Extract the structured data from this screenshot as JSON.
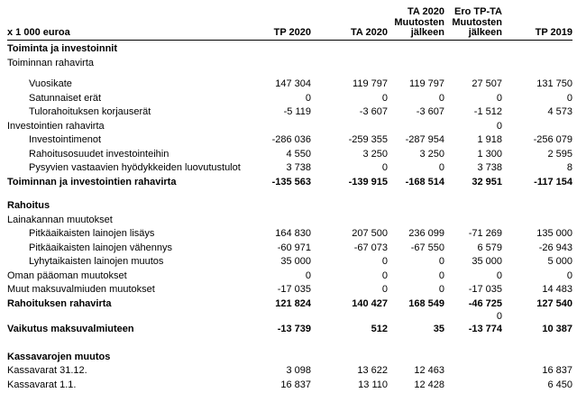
{
  "report": {
    "unit_label": "x 1 000 euroa",
    "columns": [
      {
        "id": "tp-2020",
        "text": "TP 2020"
      },
      {
        "id": "ta-2020",
        "text": "TA 2020"
      },
      {
        "id": "ta-2020-after-changes",
        "text": "TA 2020\nMuutosten\njälkeen"
      },
      {
        "id": "ero-tp-ta-after-changes",
        "text": "Ero TP-TA\nMuutosten\njälkeen"
      },
      {
        "id": "tp-2019",
        "text": "TP 2019"
      }
    ],
    "rows": [
      {
        "label": "Toiminta ja investoinnit",
        "type": "section",
        "values": [
          "",
          "",
          "",
          "",
          ""
        ]
      },
      {
        "label": "Toiminnan rahavirta",
        "type": "plain",
        "values": [
          "",
          "",
          "",
          "",
          ""
        ]
      },
      {
        "type": "spacer-sm"
      },
      {
        "label": "Vuosikate",
        "type": "detail",
        "values": [
          "147 304",
          "119 797",
          "119 797",
          "27 507",
          "131 750"
        ]
      },
      {
        "label": "Satunnaiset erät",
        "type": "detail",
        "values": [
          "0",
          "0",
          "0",
          "0",
          "0"
        ]
      },
      {
        "label": "Tulorahoituksen korjauserät",
        "type": "detail",
        "values": [
          "-5 119",
          "-3 607",
          "-3 607",
          "-1 512",
          "4 573"
        ]
      },
      {
        "label": "Investointien rahavirta",
        "type": "plain",
        "values": [
          "",
          "",
          "",
          "0",
          ""
        ]
      },
      {
        "label": "Investointimenot",
        "type": "detail",
        "values": [
          "-286 036",
          "-259 355",
          "-287 954",
          "1 918",
          "-256 079"
        ]
      },
      {
        "label": "Rahoitusosuudet investointeihin",
        "type": "detail",
        "values": [
          "4 550",
          "3 250",
          "3 250",
          "1 300",
          "2 595"
        ]
      },
      {
        "label": "Pysyvien vastaavien hyödykkeiden luovutustulot",
        "type": "detail",
        "values": [
          "3 738",
          "0",
          "0",
          "3 738",
          "8"
        ]
      },
      {
        "label": "Toiminnan ja investointien rahavirta",
        "type": "total",
        "values": [
          "-135 563",
          "-139 915",
          "-168 514",
          "32 951",
          "-117 154"
        ]
      },
      {
        "type": "spacer-lg"
      },
      {
        "label": "Rahoitus",
        "type": "section",
        "values": [
          "",
          "",
          "",
          "",
          ""
        ]
      },
      {
        "label": "Lainakannan muutokset",
        "type": "plain",
        "values": [
          "",
          "",
          "",
          "",
          ""
        ]
      },
      {
        "label": "Pitkäaikaisten lainojen lisäys",
        "type": "detail",
        "values": [
          "164 830",
          "207 500",
          "236 099",
          "-71 269",
          "135 000"
        ]
      },
      {
        "label": "Pitkäaikaisten lainojen vähennys",
        "type": "detail",
        "values": [
          "-60 971",
          "-67 073",
          "-67 550",
          "6 579",
          "-26 943"
        ]
      },
      {
        "label": "Lyhytaikaisten lainojen muutos",
        "type": "detail",
        "values": [
          "35 000",
          "0",
          "0",
          "35 000",
          "5 000"
        ]
      },
      {
        "label": "Oman pääoman muutokset",
        "type": "plain",
        "values": [
          "0",
          "0",
          "0",
          "0",
          "0"
        ]
      },
      {
        "label": "Muut maksuvalmiuden muutokset",
        "type": "plain",
        "values": [
          "-17 035",
          "0",
          "0",
          "-17 035",
          "14 483"
        ]
      },
      {
        "label": "Rahoituksen rahavirta",
        "type": "total",
        "values": [
          "121 824",
          "140 427",
          "168 549",
          "-46 725",
          "127 540"
        ]
      },
      {
        "label": "",
        "type": "plain-short",
        "values": [
          "",
          "",
          "",
          "0",
          ""
        ]
      },
      {
        "label": "Vaikutus maksuvalmiuteen",
        "type": "total",
        "values": [
          "-13 739",
          "512",
          "35",
          "-13 774",
          "10 387"
        ]
      },
      {
        "type": "spacer-md"
      },
      {
        "label": "Kassavarojen muutos",
        "type": "section",
        "values": [
          "",
          "",
          "",
          "",
          ""
        ]
      },
      {
        "label": "Kassavarat 31.12.",
        "type": "plain",
        "values": [
          "3 098",
          "13 622",
          "12 463",
          "",
          "16 837"
        ]
      },
      {
        "label": "Kassavarat 1.1.",
        "type": "plain",
        "values": [
          "16 837",
          "13 110",
          "12 428",
          "",
          "6 450"
        ]
      }
    ]
  }
}
